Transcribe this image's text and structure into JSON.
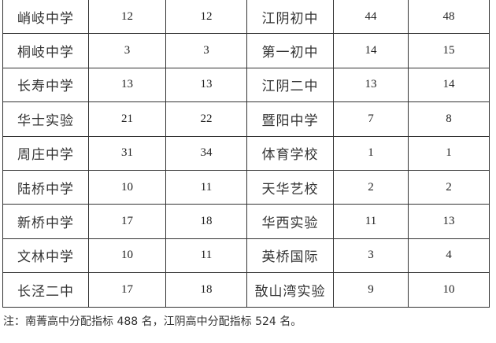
{
  "rows": [
    [
      "峭岐中学",
      "12",
      "12",
      "江阴初中",
      "44",
      "48"
    ],
    [
      "桐岐中学",
      "3",
      "3",
      "第一初中",
      "14",
      "15"
    ],
    [
      "长寿中学",
      "13",
      "13",
      "江阴二中",
      "13",
      "14"
    ],
    [
      "华士实验",
      "21",
      "22",
      "暨阳中学",
      "7",
      "8"
    ],
    [
      "周庄中学",
      "31",
      "34",
      "体育学校",
      "1",
      "1"
    ],
    [
      "陆桥中学",
      "10",
      "11",
      "天华艺校",
      "2",
      "2"
    ],
    [
      "新桥中学",
      "17",
      "18",
      "华西实验",
      "11",
      "13"
    ],
    [
      "文林中学",
      "10",
      "11",
      "英桥国际",
      "3",
      "4"
    ],
    [
      "长泾二中",
      "17",
      "18",
      "敔山湾实验",
      "9",
      "10"
    ]
  ],
  "note": "注：南菁高中分配指标 488 名，江阴高中分配指标 524 名。"
}
